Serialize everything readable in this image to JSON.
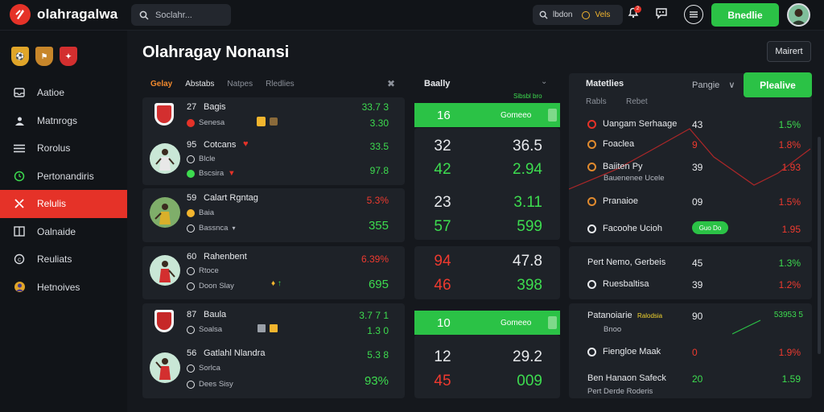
{
  "app": {
    "title": "olahragalwa"
  },
  "search": {
    "placeholder": "Soclahr..."
  },
  "topbar": {
    "search2_text": "lbdon",
    "search2_tag": "Vels",
    "notif_count": "2",
    "cta_label": "Bnedlie"
  },
  "sidebar": {
    "items": [
      {
        "label": "Aatioe",
        "icon": "inbox-icon"
      },
      {
        "label": "Matnrogs",
        "icon": "user-group-icon"
      },
      {
        "label": "Rorolus",
        "icon": "list-icon"
      },
      {
        "label": "Pertonandiris",
        "icon": "clock-icon"
      },
      {
        "label": "Relulis",
        "icon": "settings-icon",
        "active": true
      },
      {
        "label": "Oalnaide",
        "icon": "book-icon"
      },
      {
        "label": "Reuliats",
        "icon": "coin-icon"
      },
      {
        "label": "Hetnoives",
        "icon": "profile-icon"
      }
    ]
  },
  "page": {
    "title": "Olahragay Nonansi",
    "button": "Mairert"
  },
  "left_panel": {
    "tabs": [
      "Gelay",
      "Abstabs",
      "Natpes",
      "Rledlies"
    ],
    "rows": [
      {
        "rank": "27",
        "name": "Bagis",
        "sub": "Senesa",
        "v1": "33.7 3",
        "v2": "3.30",
        "c1": "green",
        "c2": "green"
      },
      {
        "rank": "95",
        "name": "Cotcans",
        "sub1": "Blcle",
        "sub2": "Bscsira",
        "v1": "33.5",
        "v2": "97.8",
        "c1": "green",
        "c2": "green"
      },
      {
        "rank": "59",
        "name": "Calart Rgntag",
        "sub1": "Baia",
        "sub2": "Bassnca",
        "v1": "5.3%",
        "v2": "355",
        "c1": "red",
        "c2": "green"
      },
      {
        "rank": "60",
        "name": "Rahenbent",
        "sub1": "Rtoce",
        "sub2": "Doon Slay",
        "v1": "6.39%",
        "v2": "695",
        "c1": "red",
        "c2": "green"
      },
      {
        "rank": "87",
        "name": "Baula",
        "sub": "Soalsa",
        "v1": "3.7 7 1",
        "v2": "1.3 0",
        "c1": "green",
        "c2": "green"
      },
      {
        "rank": "56",
        "name": "Gatlahl Nlandra",
        "sub1": "Sorlca",
        "sub2": "Dees Sisy",
        "v1": "5.3 8",
        "v2": "93%",
        "c1": "green",
        "c2": "green"
      }
    ]
  },
  "mid_panel": {
    "title": "Baally",
    "top_label": "Sibsbl bro",
    "bars": [
      {
        "num": "16",
        "label": "Gomeeo"
      },
      {
        "num": "10",
        "label": "Gomeeo"
      }
    ],
    "pairs": [
      {
        "a": "32",
        "b": "36.5",
        "ca": "white",
        "cb": "white"
      },
      {
        "a": "42",
        "b": "2.94",
        "ca": "green",
        "cb": "green"
      },
      {
        "a": "23",
        "b": "3.11",
        "ca": "white",
        "cb": "green"
      },
      {
        "a": "57",
        "b": "599",
        "ca": "green",
        "cb": "green"
      },
      {
        "a": "94",
        "b": "47.8",
        "ca": "red",
        "cb": "white"
      },
      {
        "a": "46",
        "b": "398",
        "ca": "red",
        "cb": "green"
      },
      {
        "a": "12",
        "b": "29.2",
        "ca": "white",
        "cb": "white"
      },
      {
        "a": "45",
        "b": "009",
        "ca": "red",
        "cb": "green"
      }
    ]
  },
  "right_panel": {
    "title": "Matetlies",
    "sub_left": "Rabls",
    "sub_right": "Rebet",
    "dropdown": "Pangie",
    "button": "Plealive",
    "rows": [
      {
        "name": "Uangam Serhaage",
        "num": "43",
        "pct": "1.5%",
        "cp": "green"
      },
      {
        "name": "Foaclea",
        "num": "9",
        "pct": "1.8%",
        "cp": "red"
      },
      {
        "name": "Baiiten Py",
        "sub": "Bauenenee Ucele",
        "num": "39",
        "pct": "1.93",
        "cp": "red"
      },
      {
        "name": "Pranaioe",
        "num": "09",
        "pct": "1.5%",
        "cp": "red"
      },
      {
        "name": "Facoohe Ucioh",
        "pill": "Guo Do",
        "pct": "1.95",
        "cp": "red"
      },
      {
        "name": "Pert Nemo, Gerbeis",
        "num": "45",
        "pct": "1.3%",
        "cp": "green"
      },
      {
        "name": "Ruesbaltisa",
        "num": "39",
        "pct": "1.2%",
        "cp": "red"
      },
      {
        "name": "Patanoiarie",
        "tag": "Ralodsia",
        "sub": "Bnoo",
        "num": "90",
        "pct": "53953 5",
        "cp": "green"
      },
      {
        "name": "Fiengloe Maak",
        "num": "0",
        "pct": "1.9%",
        "cp": "red"
      },
      {
        "name": "Ben Hanaon Safeck",
        "sub": "Pert Derde Roderis",
        "num": "20",
        "pct": "1.59",
        "cp": "green"
      }
    ]
  },
  "colors": {
    "accent_green": "#2bc246",
    "accent_red": "#e53228",
    "bg": "#15181d",
    "panel": "#1e2228"
  }
}
